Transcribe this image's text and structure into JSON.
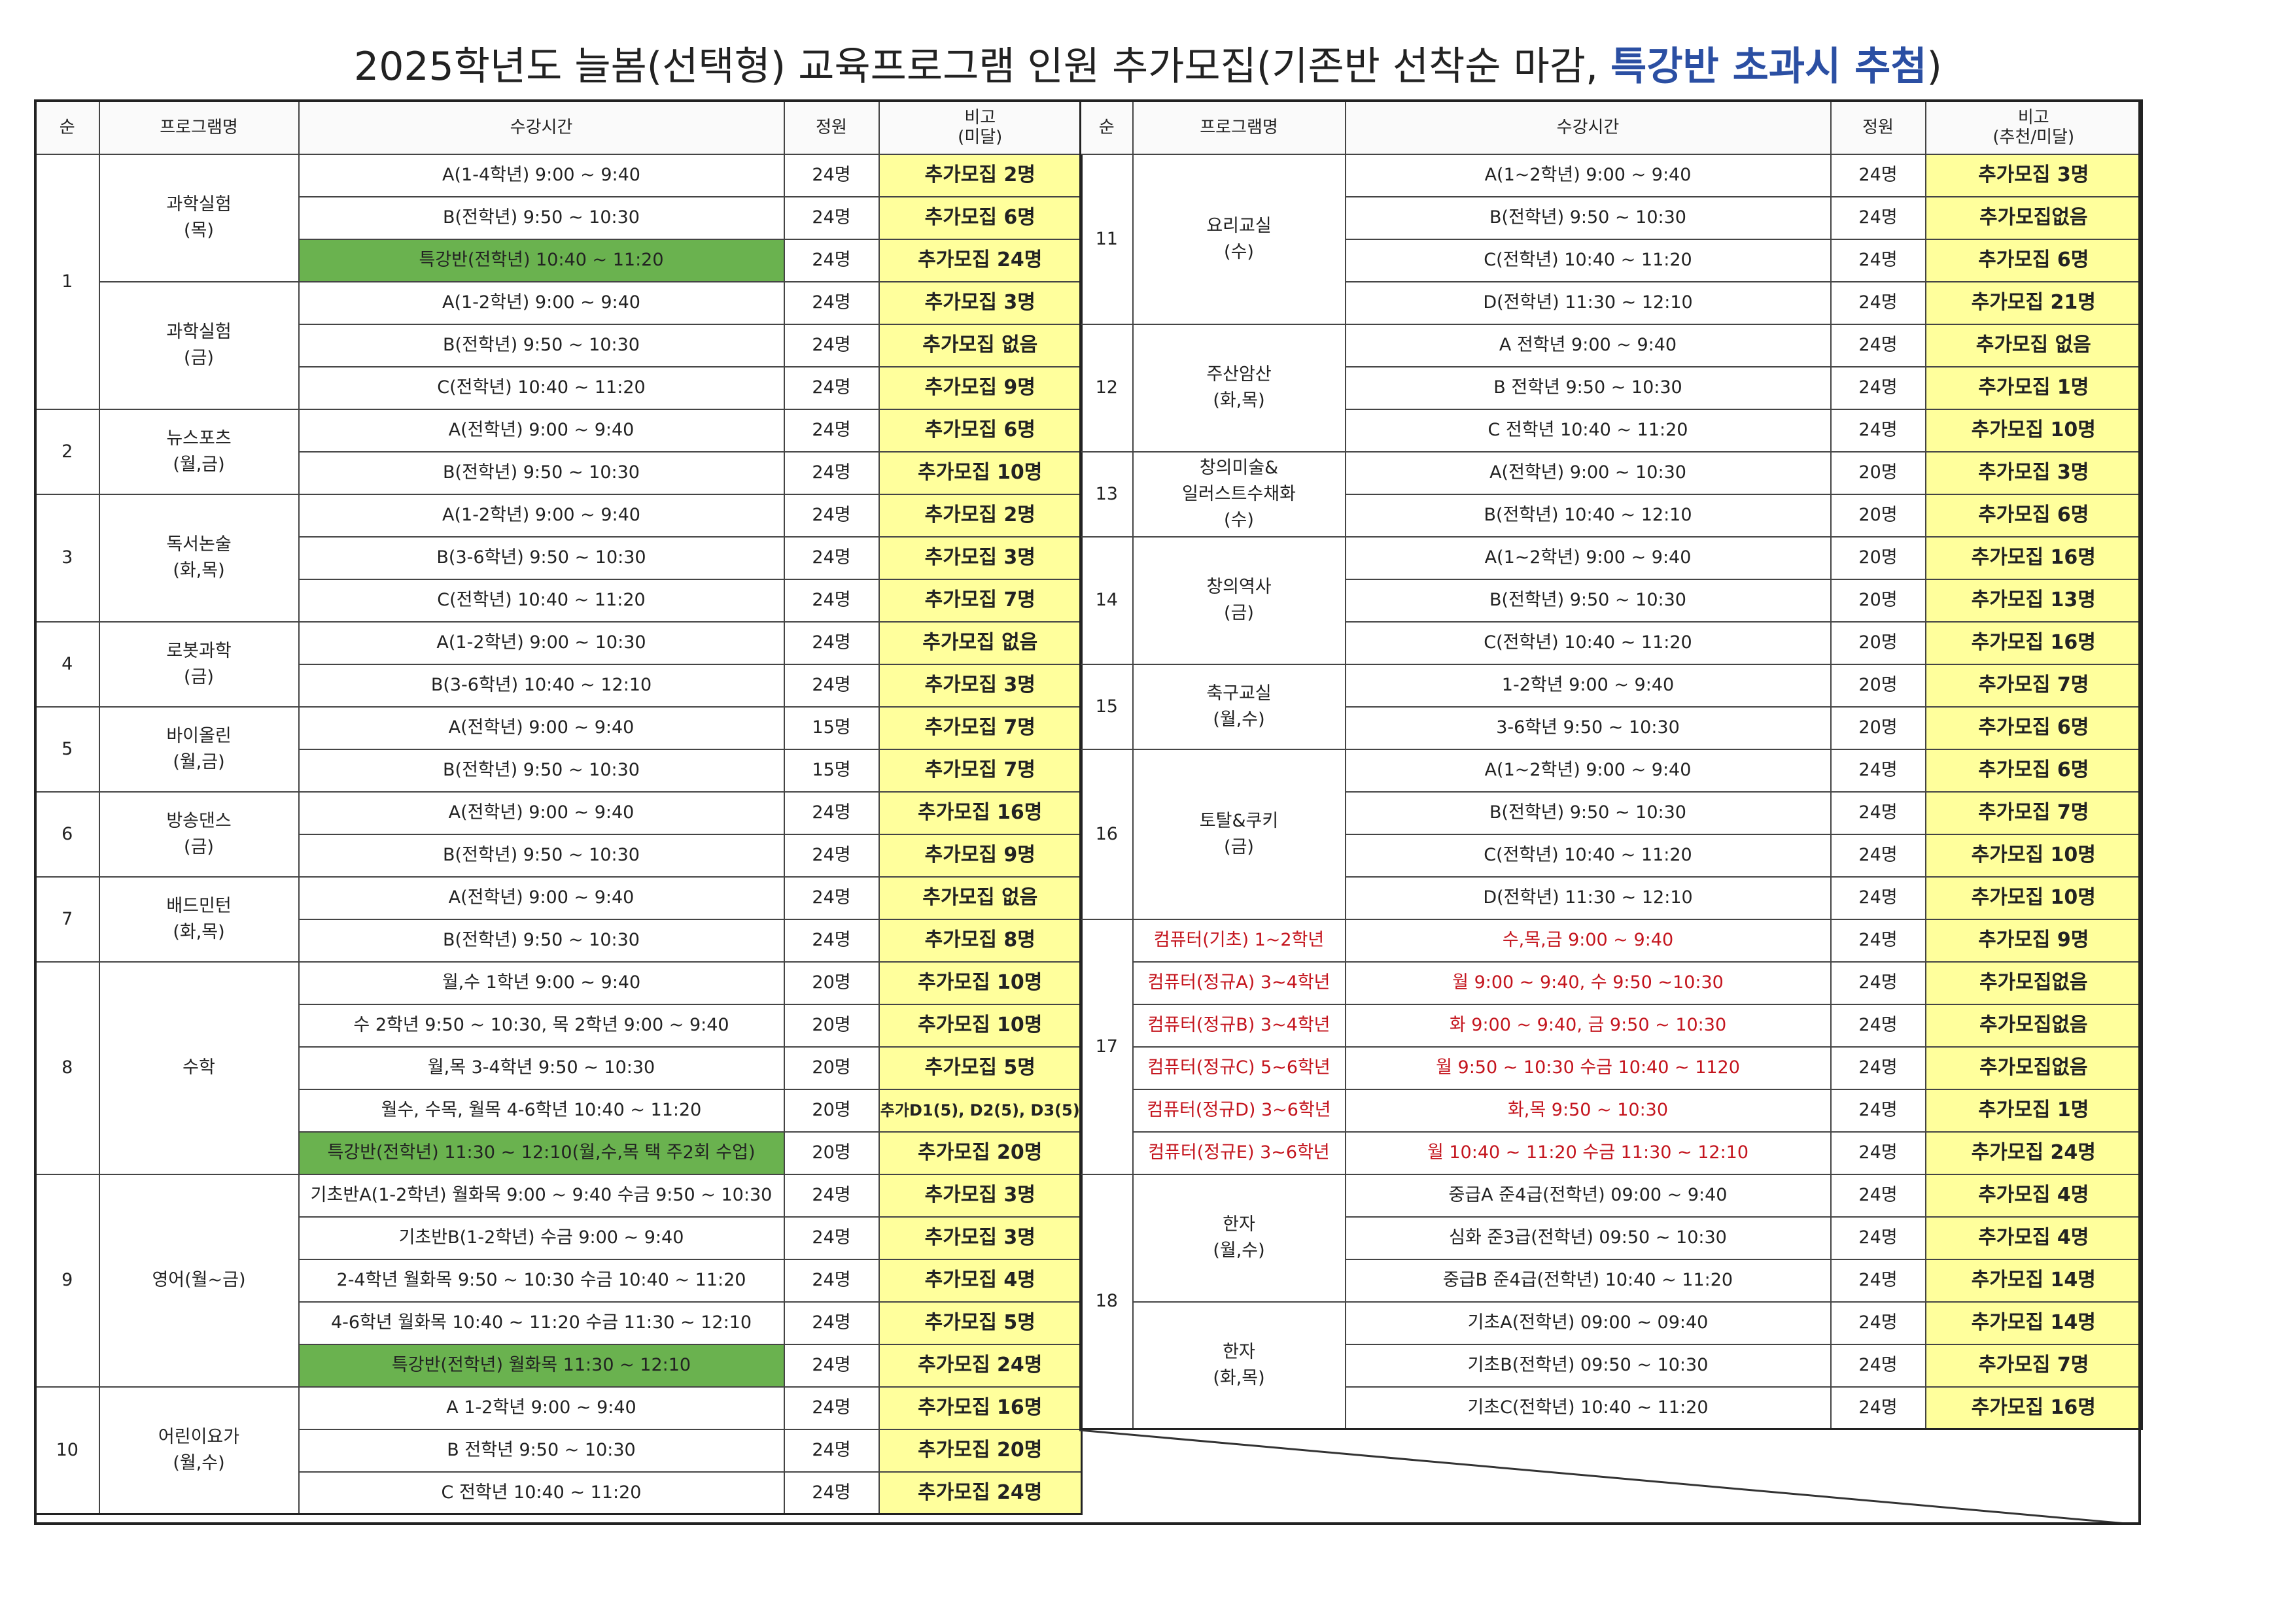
{
  "title": {
    "prefix": "2025학년도 늘봄(선택형) 교육프로그램 인원 추가모집(기존반 선착순 마감, ",
    "highlight": "특강반 초과시 추첨",
    "suffix": ")"
  },
  "headers": {
    "left": [
      "순",
      "프로그램명",
      "수강시간",
      "정원",
      "비고\n(미달)"
    ],
    "right": [
      "순",
      "프로그램명",
      "수강시간",
      "정원",
      "비고\n(추천/미달)"
    ]
  },
  "left_rows": [
    {
      "no": "1",
      "program": "과학실험\n(목)",
      "time": "A(1-4학년) 9:00 ~ 9:40",
      "cap": "24명",
      "note": "추가모집 2명"
    },
    {
      "no": "1",
      "program": "과학실험\n(목)",
      "time": "B(전학년) 9:50 ~ 10:30",
      "cap": "24명",
      "note": "추가모집 6명"
    },
    {
      "no": "1",
      "program": "과학실험\n(목)",
      "time": "특강반(전학년) 10:40 ~ 11:20",
      "cap": "24명",
      "note": "추가모집 24명",
      "green": true
    },
    {
      "no": "1",
      "program": "과학실험\n(금)",
      "time": "A(1-2학년) 9:00 ~ 9:40",
      "cap": "24명",
      "note": "추가모집 3명"
    },
    {
      "no": "1",
      "program": "과학실험\n(금)",
      "time": "B(전학년) 9:50 ~ 10:30",
      "cap": "24명",
      "note": "추가모집 없음"
    },
    {
      "no": "1",
      "program": "과학실험\n(금)",
      "time": "C(전학년) 10:40 ~ 11:20",
      "cap": "24명",
      "note": "추가모집 9명"
    },
    {
      "no": "2",
      "program": "뉴스포츠\n(월,금)",
      "time": "A(전학년) 9:00 ~ 9:40",
      "cap": "24명",
      "note": "추가모집 6명"
    },
    {
      "no": "2",
      "program": "뉴스포츠\n(월,금)",
      "time": "B(전학년) 9:50 ~ 10:30",
      "cap": "24명",
      "note": "추가모집 10명"
    },
    {
      "no": "3",
      "program": "독서논술\n(화,목)",
      "time": "A(1-2학년) 9:00 ~ 9:40",
      "cap": "24명",
      "note": "추가모집 2명"
    },
    {
      "no": "3",
      "program": "독서논술\n(화,목)",
      "time": "B(3-6학년) 9:50 ~ 10:30",
      "cap": "24명",
      "note": "추가모집 3명"
    },
    {
      "no": "3",
      "program": "독서논술\n(화,목)",
      "time": "C(전학년) 10:40 ~ 11:20",
      "cap": "24명",
      "note": "추가모집 7명"
    },
    {
      "no": "4",
      "program": "로봇과학\n(금)",
      "time": "A(1-2학년) 9:00 ~ 10:30",
      "cap": "24명",
      "note": "추가모집 없음"
    },
    {
      "no": "4",
      "program": "로봇과학\n(금)",
      "time": "B(3-6학년) 10:40 ~ 12:10",
      "cap": "24명",
      "note": "추가모집 3명"
    },
    {
      "no": "5",
      "program": "바이올린\n(월,금)",
      "time": "A(전학년) 9:00 ~ 9:40",
      "cap": "15명",
      "note": "추가모집 7명"
    },
    {
      "no": "5",
      "program": "바이올린\n(월,금)",
      "time": "B(전학년) 9:50 ~ 10:30",
      "cap": "15명",
      "note": "추가모집 7명"
    },
    {
      "no": "6",
      "program": "방송댄스\n(금)",
      "time": "A(전학년) 9:00 ~ 9:40",
      "cap": "24명",
      "note": "추가모집 16명"
    },
    {
      "no": "6",
      "program": "방송댄스\n(금)",
      "time": "B(전학년) 9:50 ~ 10:30",
      "cap": "24명",
      "note": "추가모집 9명"
    },
    {
      "no": "7",
      "program": "배드민턴\n(화,목)",
      "time": "A(전학년) 9:00 ~ 9:40",
      "cap": "24명",
      "note": "추가모집 없음"
    },
    {
      "no": "7",
      "program": "배드민턴\n(화,목)",
      "time": "B(전학년) 9:50 ~ 10:30",
      "cap": "24명",
      "note": "추가모집 8명"
    },
    {
      "no": "8",
      "program": "수학",
      "time": "월,수 1학년 9:00 ~ 9:40",
      "cap": "20명",
      "note": "추가모집 10명"
    },
    {
      "no": "8",
      "program": "수학",
      "time": "수 2학년 9:50 ~ 10:30,  목 2학년 9:00 ~ 9:40",
      "cap": "20명",
      "note": "추가모집 10명"
    },
    {
      "no": "8",
      "program": "수학",
      "time": "월,목 3-4학년 9:50 ~ 10:30",
      "cap": "20명",
      "note": "추가모집 5명"
    },
    {
      "no": "8",
      "program": "수학",
      "time": "월수, 수목, 월목 4-6학년 10:40 ~ 11:20",
      "cap": "20명",
      "note": "추가D1(5), D2(5), D3(5)",
      "small": true
    },
    {
      "no": "8",
      "program": "수학",
      "time": "특강반(전학년) 11:30 ~ 12:10(월,수,목 택 주2회 수업)",
      "cap": "20명",
      "note": "추가모집 20명",
      "green": true
    },
    {
      "no": "9",
      "program": "영어(월~금)",
      "time": "기초반A(1-2학년) 월화목 9:00 ~ 9:40   수금 9:50 ~ 10:30",
      "cap": "24명",
      "note": "추가모집 3명"
    },
    {
      "no": "9",
      "program": "영어(월~금)",
      "time": "기초반B(1-2학년) 수금 9:00 ~ 9:40",
      "cap": "24명",
      "note": "추가모집 3명"
    },
    {
      "no": "9",
      "program": "영어(월~금)",
      "time": "2-4학년 월화목 9:50 ~ 10:30    수금 10:40 ~ 11:20",
      "cap": "24명",
      "note": "추가모집 4명"
    },
    {
      "no": "9",
      "program": "영어(월~금)",
      "time": "4-6학년 월화목 10:40 ~ 11:20   수금 11:30 ~ 12:10",
      "cap": "24명",
      "note": "추가모집 5명"
    },
    {
      "no": "9",
      "program": "영어(월~금)",
      "time": "특강반(전학년) 월화목 11:30 ~ 12:10",
      "cap": "24명",
      "note": "추가모집 24명",
      "green": true
    },
    {
      "no": "10",
      "program": "어린이요가\n(월,수)",
      "time": "A 1-2학년  9:00 ~ 9:40",
      "cap": "24명",
      "note": "추가모집 16명"
    },
    {
      "no": "10",
      "program": "어린이요가\n(월,수)",
      "time": "B 전학년 9:50 ~ 10:30",
      "cap": "24명",
      "note": "추가모집 20명"
    },
    {
      "no": "10",
      "program": "어린이요가\n(월,수)",
      "time": "C 전학년 10:40 ~ 11:20",
      "cap": "24명",
      "note": "추가모집 24명"
    }
  ],
  "right_rows": [
    {
      "no": "11",
      "program": "요리교실\n(수)",
      "time": "A(1~2학년)  9:00 ~ 9:40",
      "cap": "24명",
      "note": "추가모집 3명"
    },
    {
      "no": "11",
      "program": "요리교실\n(수)",
      "time": "B(전학년)  9:50 ~ 10:30",
      "cap": "24명",
      "note": "추가모집없음"
    },
    {
      "no": "11",
      "program": "요리교실\n(수)",
      "time": "C(전학년) 10:40 ~ 11:20",
      "cap": "24명",
      "note": "추가모집 6명"
    },
    {
      "no": "11",
      "program": "요리교실\n(수)",
      "time": "D(전학년) 11:30 ~ 12:10",
      "cap": "24명",
      "note": "추가모집 21명"
    },
    {
      "no": "12",
      "program": "주산암산\n(화,목)",
      "time": "A  전학년  9:00 ~ 9:40",
      "cap": "24명",
      "note": "추가모집 없음"
    },
    {
      "no": "12",
      "program": "주산암산\n(화,목)",
      "time": "B  전학년  9:50 ~ 10:30",
      "cap": "24명",
      "note": "추가모집 1명"
    },
    {
      "no": "12",
      "program": "주산암산\n(화,목)",
      "time": "C  전학년 10:40 ~ 11:20",
      "cap": "24명",
      "note": "추가모집 10명"
    },
    {
      "no": "13",
      "program": "창의미술&\n일러스트수채화\n(수)",
      "time": "A(전학년) 9:00 ~ 10:30",
      "cap": "20명",
      "note": "추가모집 3명"
    },
    {
      "no": "13",
      "program": "창의미술&\n일러스트수채화\n(수)",
      "time": "B(전학년) 10:40 ~ 12:10",
      "cap": "20명",
      "note": "추가모집 6명"
    },
    {
      "no": "14",
      "program": "창의역사\n(금)",
      "time": "A(1~2학년)  9:00 ~ 9:40",
      "cap": "20명",
      "note": "추가모집 16명"
    },
    {
      "no": "14",
      "program": "창의역사\n(금)",
      "time": "B(전학년)  9:50 ~ 10:30",
      "cap": "20명",
      "note": "추가모집 13명"
    },
    {
      "no": "14",
      "program": "창의역사\n(금)",
      "time": "C(전학년) 10:40 ~ 11:20",
      "cap": "20명",
      "note": "추가모집 16명"
    },
    {
      "no": "15",
      "program": "축구교실\n(월,수)",
      "time": "1-2학년 9:00 ~ 9:40",
      "cap": "20명",
      "note": "추가모집 7명"
    },
    {
      "no": "15",
      "program": "축구교실\n(월,수)",
      "time": "3-6학년 9:50 ~ 10:30",
      "cap": "20명",
      "note": "추가모집 6명"
    },
    {
      "no": "16",
      "program": "토탈&쿠키\n(금)",
      "time": "A(1~2학년)  9:00 ~ 9:40",
      "cap": "24명",
      "note": "추가모집 6명"
    },
    {
      "no": "16",
      "program": "토탈&쿠키\n(금)",
      "time": "B(전학년)  9:50 ~ 10:30",
      "cap": "24명",
      "note": "추가모집 7명"
    },
    {
      "no": "16",
      "program": "토탈&쿠키\n(금)",
      "time": "C(전학년) 10:40 ~ 11:20",
      "cap": "24명",
      "note": "추가모집 10명"
    },
    {
      "no": "16",
      "program": "토탈&쿠키\n(금)",
      "time": "D(전학년) 11:30 ~ 12:10",
      "cap": "24명",
      "note": "추가모집 10명"
    },
    {
      "no": "17",
      "program": "컴퓨터(기초) 1~2학년",
      "time": "수,목,금  9:00 ~ 9:40",
      "cap": "24명",
      "note": "추가모집 9명",
      "red": true
    },
    {
      "no": "17",
      "program": "컴퓨터(정규A) 3~4학년",
      "time": "월 9:00 ~ 9:40, 수 9:50 ~10:30",
      "cap": "24명",
      "note": "추가모집없음",
      "red": true
    },
    {
      "no": "17",
      "program": "컴퓨터(정규B) 3~4학년",
      "time": "화 9:00 ~ 9:40, 금 9:50 ~ 10:30",
      "cap": "24명",
      "note": "추가모집없음",
      "red": true
    },
    {
      "no": "17",
      "program": "컴퓨터(정규C) 5~6학년",
      "time": "월 9:50 ~ 10:30  수금 10:40 ~ 1120",
      "cap": "24명",
      "note": "추가모집없음",
      "red": true
    },
    {
      "no": "17",
      "program": "컴퓨터(정규D) 3~6학년",
      "time": "화,목 9:50 ~ 10:30",
      "cap": "24명",
      "note": "추가모집 1명",
      "red": true
    },
    {
      "no": "17",
      "program": "컴퓨터(정규E) 3~6학년",
      "time": "월 10:40 ~ 11:20   수금 11:30 ~ 12:10",
      "cap": "24명",
      "note": "추가모집 24명",
      "red": true
    },
    {
      "no": "18",
      "program": "한자\n(월,수)",
      "time": "중급A 준4급(전학년) 09:00 ~ 9:40",
      "cap": "24명",
      "note": "추가모집 4명"
    },
    {
      "no": "18",
      "program": "한자\n(월,수)",
      "time": "심화 준3급(전학년) 09:50 ~ 10:30",
      "cap": "24명",
      "note": "추가모집 4명"
    },
    {
      "no": "18",
      "program": "한자\n(월,수)",
      "time": "중급B 준4급(전학년) 10:40 ~ 11:20",
      "cap": "24명",
      "note": "추가모집 14명"
    },
    {
      "no": "18",
      "program": "한자\n(화,목)",
      "time": "기초A(전학년) 09:00 ~ 09:40",
      "cap": "24명",
      "note": "추가모집 14명"
    },
    {
      "no": "18",
      "program": "한자\n(화,목)",
      "time": "기초B(전학년) 09:50 ~ 10:30",
      "cap": "24명",
      "note": "추가모집 7명"
    },
    {
      "no": "18",
      "program": "한자\n(화,목)",
      "time": "기초C(전학년) 10:40 ~ 11:20",
      "cap": "24명",
      "note": "추가모집 16명"
    }
  ]
}
